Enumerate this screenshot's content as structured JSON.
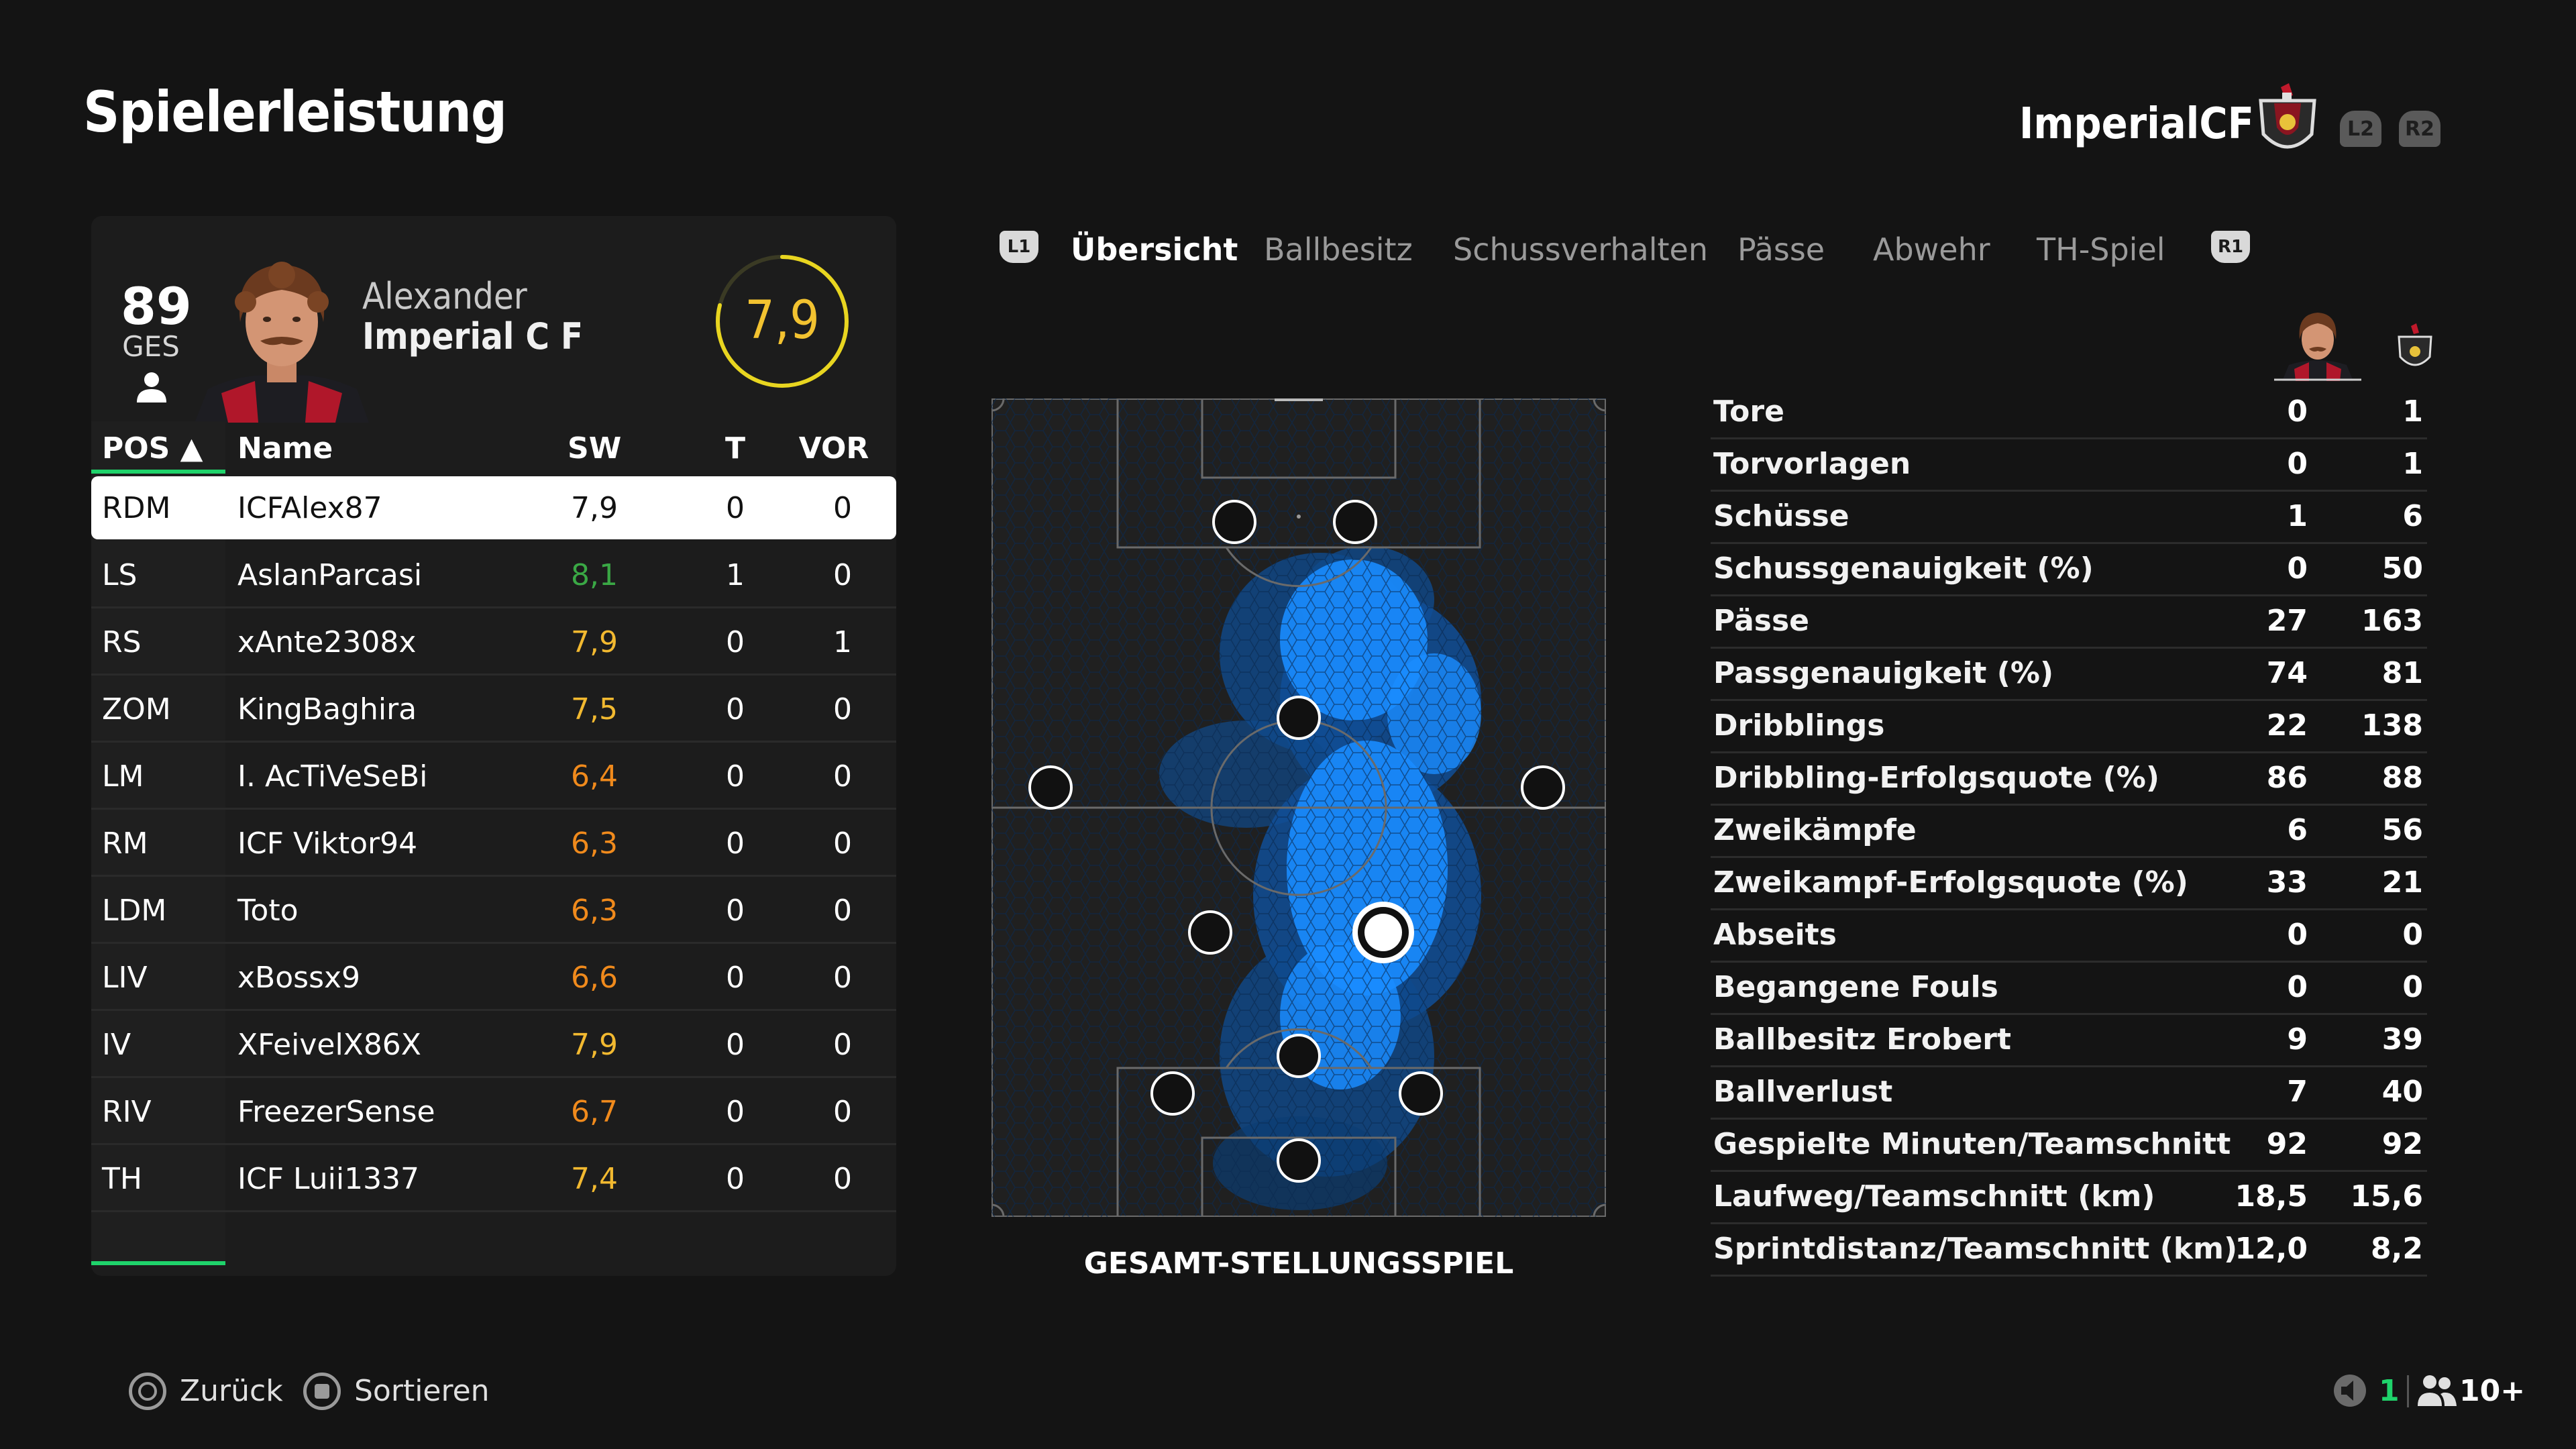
{
  "header": {
    "title": "Spielerleistung",
    "team_name": "ImperialCF",
    "l2": "L2",
    "r2": "R2"
  },
  "player": {
    "overall": "89",
    "overall_label": "GES",
    "first_name": "Alexander",
    "club": "Imperial C F",
    "rating": "7,9"
  },
  "table": {
    "headers": {
      "pos": "POS ▲",
      "name": "Name",
      "sw": "SW",
      "t": "T",
      "vor": "VOR"
    },
    "rows": [
      {
        "pos": "RDM",
        "name": "ICFAlex87",
        "sw": "7,9",
        "sw_color": "#111111",
        "t": "0",
        "vor": "0"
      },
      {
        "pos": "LS",
        "name": "AslanParcasi",
        "sw": "8,1",
        "sw_color": "#3aa845",
        "t": "1",
        "vor": "0"
      },
      {
        "pos": "RS",
        "name": "xAnte2308x",
        "sw": "7,9",
        "sw_color": "#f2b930",
        "t": "0",
        "vor": "1"
      },
      {
        "pos": "ZOM",
        "name": "KingBaghira",
        "sw": "7,5",
        "sw_color": "#f2b930",
        "t": "0",
        "vor": "0"
      },
      {
        "pos": "LM",
        "name": "I. AcTiVeSeBi",
        "sw": "6,4",
        "sw_color": "#f08a1c",
        "t": "0",
        "vor": "0"
      },
      {
        "pos": "RM",
        "name": "ICF Viktor94",
        "sw": "6,3",
        "sw_color": "#f08a1c",
        "t": "0",
        "vor": "0"
      },
      {
        "pos": "LDM",
        "name": "Toto",
        "sw": "6,3",
        "sw_color": "#f08a1c",
        "t": "0",
        "vor": "0"
      },
      {
        "pos": "LIV",
        "name": "xBossx9",
        "sw": "6,6",
        "sw_color": "#f08a1c",
        "t": "0",
        "vor": "0"
      },
      {
        "pos": "IV",
        "name": "XFeivelX86X",
        "sw": "7,9",
        "sw_color": "#f2b930",
        "t": "0",
        "vor": "0"
      },
      {
        "pos": "RIV",
        "name": "FreezerSense",
        "sw": "6,7",
        "sw_color": "#f08a1c",
        "t": "0",
        "vor": "0"
      },
      {
        "pos": "TH",
        "name": "ICF Luii1337",
        "sw": "7,4",
        "sw_color": "#f2b930",
        "t": "0",
        "vor": "0"
      }
    ]
  },
  "tabs": {
    "l1": "L1",
    "r1": "R1",
    "items": [
      "Übersicht",
      "Ballbesitz",
      "Schussverhalten",
      "Pässe",
      "Abwehr",
      "TH-Spiel"
    ],
    "active": 0
  },
  "pitch": {
    "caption": "GESAMT-STELLUNGSSPIEL"
  },
  "stats": [
    {
      "label": "Tore",
      "player": "0",
      "team": "1"
    },
    {
      "label": "Torvorlagen",
      "player": "0",
      "team": "1"
    },
    {
      "label": "Schüsse",
      "player": "1",
      "team": "6"
    },
    {
      "label": "Schussgenauigkeit (%)",
      "player": "0",
      "team": "50"
    },
    {
      "label": "Pässe",
      "player": "27",
      "team": "163"
    },
    {
      "label": "Passgenauigkeit (%)",
      "player": "74",
      "team": "81"
    },
    {
      "label": "Dribblings",
      "player": "22",
      "team": "138"
    },
    {
      "label": "Dribbling-Erfolgsquote (%)",
      "player": "86",
      "team": "88"
    },
    {
      "label": "Zweikämpfe",
      "player": "6",
      "team": "56"
    },
    {
      "label": "Zweikampf-Erfolgsquote (%)",
      "player": "33",
      "team": "21"
    },
    {
      "label": "Abseits",
      "player": "0",
      "team": "0"
    },
    {
      "label": "Begangene Fouls",
      "player": "0",
      "team": "0"
    },
    {
      "label": "Ballbesitz Erobert",
      "player": "9",
      "team": "39"
    },
    {
      "label": "Ballverlust",
      "player": "7",
      "team": "40"
    },
    {
      "label": "Gespielte Minuten/Teamschnitt",
      "player": "92",
      "team": "92"
    },
    {
      "label": "Laufweg/Teamschnitt (km)",
      "player": "18,5",
      "team": "15,6"
    },
    {
      "label": "Sprintdistanz/Teamschnitt (km)",
      "player": "12,0",
      "team": "8,2"
    }
  ],
  "footer": {
    "back_label": "Zurück",
    "sort_label": "Sortieren",
    "online_count": "1",
    "players_count": "10+"
  },
  "colors": {
    "accent_green": "#1fd36b",
    "rating_yellow": "#f2c230",
    "heat_blue": "#1a8cff"
  }
}
